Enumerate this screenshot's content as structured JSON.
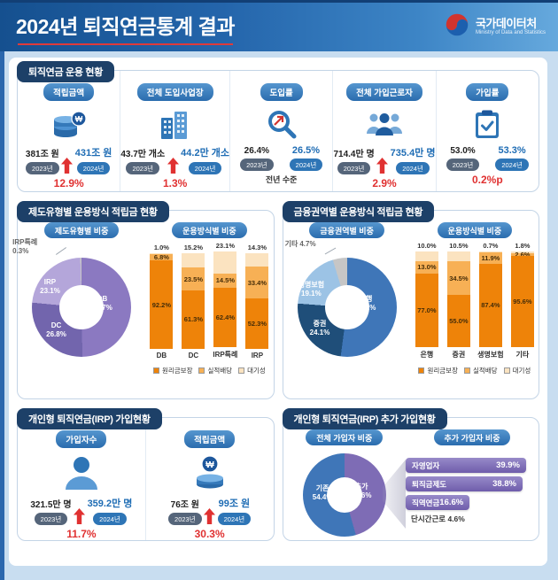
{
  "header": {
    "title": "2024년 퇴직연금통계 결과",
    "agency_name": "국가데이터처",
    "agency_subtitle": "Ministry of Data and Statistics"
  },
  "sections": {
    "overview": {
      "title": "퇴직연금 운용 현황",
      "metrics": [
        {
          "label": "적립금액",
          "icon": "coins-icon",
          "old_value": "381조 원",
          "old_year": "2023년",
          "new_value": "431조 원",
          "new_year": "2024년",
          "change": "12.9%",
          "arrow": true,
          "change_style": "up"
        },
        {
          "label": "전체 도입사업장",
          "icon": "buildings-icon",
          "old_value": "43.7만 개소",
          "old_year": "2023년",
          "new_value": "44.2만 개소",
          "new_year": "2024년",
          "change": "1.3%",
          "arrow": true,
          "change_style": "up"
        },
        {
          "label": "도입률",
          "icon": "magnifier-icon",
          "old_value": "26.4%",
          "old_year": "2023년",
          "new_value": "26.5%",
          "new_year": "2024년",
          "change": "전년 수준",
          "arrow": false,
          "change_style": "flat"
        },
        {
          "label": "전체 가입근로자",
          "icon": "people-icon",
          "old_value": "714.4만 명",
          "old_year": "2023년",
          "new_value": "735.4만 명",
          "new_year": "2024년",
          "change": "2.9%",
          "arrow": true,
          "change_style": "up"
        },
        {
          "label": "가입률",
          "icon": "clipboard-icon",
          "old_value": "53.0%",
          "old_year": "2023년",
          "new_value": "53.3%",
          "new_year": "2024년",
          "change": "0.2%p",
          "arrow": false,
          "change_style": "up"
        }
      ]
    },
    "by_plan_type": {
      "title": "제도유형별 운용방식 적립금 현황",
      "pie_tab": "제도유형별 비중",
      "bar_tab": "운용방식별 비중"
    },
    "by_financial_sector": {
      "title": "금융권역별 운용방식 적립금 현황",
      "pie_tab": "금융권역별 비중",
      "bar_tab": "운용방식별 비중"
    },
    "irp": {
      "title": "개인형 퇴직연금(IRP) 가입현황",
      "metrics": [
        {
          "label": "가입자수",
          "icon": "person-icon",
          "old_value": "321.5만 명",
          "old_year": "2023년",
          "new_value": "359.2만 명",
          "new_year": "2024년",
          "change": "11.7%",
          "arrow": true,
          "change_style": "up"
        },
        {
          "label": "적립금액",
          "icon": "coins-icon",
          "old_value": "76조 원",
          "old_year": "2023년",
          "new_value": "99조 원",
          "new_year": "2024년",
          "change": "30.3%",
          "arrow": true,
          "change_style": "up"
        }
      ]
    },
    "irp_additional": {
      "title": "개인형 퇴직연금(IRP) 추가 가입현황",
      "pie_tab": "전체 가입자 비중",
      "bar_tab": "추가 가입자 비중"
    }
  },
  "chart_data": [
    {
      "id": "plan-type-share",
      "type": "pie",
      "title": "제도유형별 비중",
      "labels": [
        "DB",
        "DC",
        "IRP",
        "IRP특례"
      ],
      "values": [
        49.7,
        26.8,
        23.1,
        0.3
      ],
      "value_labels": [
        "49.7%",
        "26.8%",
        "23.1%",
        "0.3%"
      ],
      "colors": [
        "#8b79c1",
        "#7265ad",
        "#b4a6da",
        "#c6c6c6"
      ],
      "legend_position": "none",
      "note": "donut, clockwise from top"
    },
    {
      "id": "plan-type-method",
      "type": "bar",
      "stacked": true,
      "title": "운용방식별 비중",
      "categories": [
        "DB",
        "DC",
        "IRP특례",
        "IRP"
      ],
      "series": [
        {
          "name": "원리금보장",
          "color": "#ee8309",
          "values": [
            92.2,
            61.3,
            62.4,
            52.3
          ],
          "value_labels": [
            "92.2%",
            "61.3%",
            "62.4%",
            "52.3%"
          ]
        },
        {
          "name": "실적배당",
          "color": "#f7b055",
          "values": [
            6.8,
            23.5,
            14.5,
            33.4
          ],
          "value_labels": [
            "6.8%",
            "23.5%",
            "14.5%",
            "33.4%"
          ]
        },
        {
          "name": "대기성",
          "color": "#fbe3c0",
          "values": [
            1.0,
            15.2,
            23.1,
            14.3
          ],
          "value_labels": [
            "1.0%",
            "15.2%",
            "23.1%",
            "14.3%"
          ]
        }
      ],
      "ylim": [
        0,
        100
      ],
      "legend_position": "bottom"
    },
    {
      "id": "sector-share",
      "type": "pie",
      "title": "금융권역별 비중",
      "labels": [
        "은행",
        "증권",
        "생명보험",
        "기타"
      ],
      "values": [
        52.1,
        24.1,
        19.1,
        4.7
      ],
      "value_labels": [
        "52.1%",
        "24.1%",
        "19.1%",
        "4.7%"
      ],
      "colors": [
        "#3f76b8",
        "#1f4e79",
        "#9cc3e5",
        "#c6c6c6"
      ],
      "legend_position": "none",
      "note": "donut, clockwise from top"
    },
    {
      "id": "sector-method",
      "type": "bar",
      "stacked": true,
      "title": "운용방식별 비중",
      "categories": [
        "은행",
        "증권",
        "생명보험",
        "기타"
      ],
      "series": [
        {
          "name": "원리금보장",
          "color": "#ee8309",
          "values": [
            77.0,
            55.0,
            87.4,
            95.6
          ],
          "value_labels": [
            "77.0%",
            "55.0%",
            "87.4%",
            "95.6%"
          ]
        },
        {
          "name": "실적배당",
          "color": "#f7b055",
          "values": [
            13.0,
            34.5,
            11.9,
            2.6
          ],
          "value_labels": [
            "13.0%",
            "34.5%",
            "11.9%",
            "2.6%"
          ]
        },
        {
          "name": "대기성",
          "color": "#fbe3c0",
          "values": [
            10.0,
            10.5,
            0.7,
            1.8
          ],
          "value_labels": [
            "10.0%",
            "10.5%",
            "0.7%",
            "1.8%"
          ]
        }
      ],
      "ylim": [
        0,
        100
      ],
      "legend_position": "bottom"
    },
    {
      "id": "irp-total-share",
      "type": "pie",
      "title": "전체 가입자 비중",
      "labels": [
        "추가",
        "기존"
      ],
      "values": [
        45.6,
        54.4
      ],
      "value_labels": [
        "45.6%",
        "54.4%"
      ],
      "colors": [
        "#7e6cb5",
        "#3f76b8"
      ],
      "legend_position": "none",
      "note": "donut, clockwise from top"
    },
    {
      "id": "irp-additional-share",
      "type": "bar",
      "orientation": "horizontal",
      "title": "추가 가입자 비중",
      "categories": [
        "자영업자",
        "퇴직금제도",
        "직역연금",
        "단시간근로"
      ],
      "values": [
        39.9,
        38.8,
        16.6,
        4.6
      ],
      "value_labels": [
        "39.9%",
        "38.8%",
        "16.6%",
        "4.6%"
      ]
    }
  ]
}
